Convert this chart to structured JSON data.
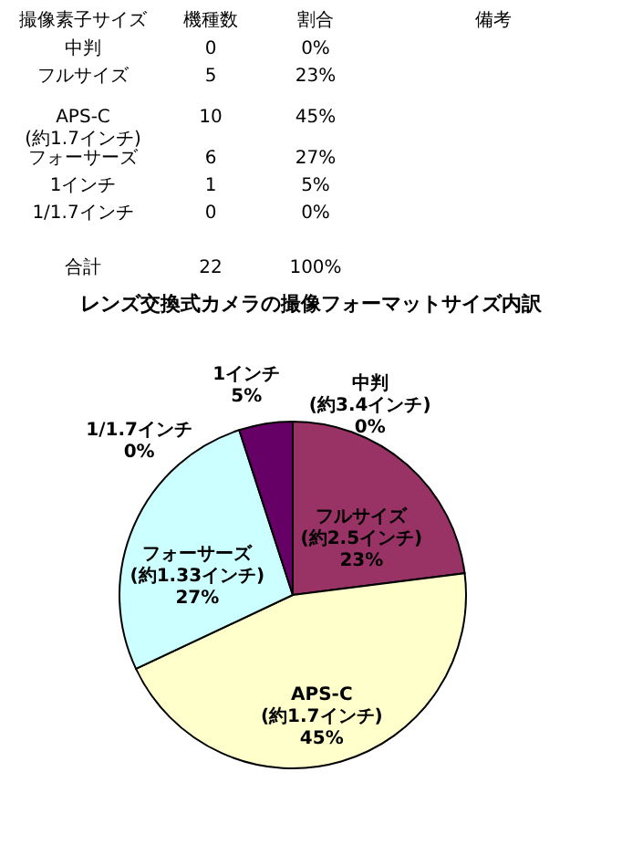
{
  "chart_data": [
    {
      "type": "other",
      "categories": [
        "撮像素子サイズ",
        "機種数",
        "割合",
        "備考"
      ],
      "annotations": [
        "中判",
        "0",
        "0%",
        null,
        "フルサイズ",
        "5",
        "23%",
        null,
        "APS-C\n(約1.7インチ)",
        "10",
        "45%",
        null,
        "フォーサーズ",
        "6",
        "27%",
        null,
        "1インチ",
        "1",
        "5%",
        null,
        "1/1.7インチ",
        "0",
        "0%",
        null,
        null,
        null,
        null,
        null,
        "合計",
        "22",
        "100%",
        null
      ]
    },
    {
      "type": "pie",
      "title": "レンズ交換式カメラの撮像フォーマットサイズ内訳",
      "categories": [
        "中判\n(約3.4インチ)",
        "フルサイズ\n(約2.5インチ)",
        "APS-C\n(約1.7インチ)",
        "フォーサーズ\n(約1.33インチ)",
        "1インチ",
        "1/1.7インチ"
      ],
      "values": [
        0,
        23,
        45,
        27,
        5,
        0
      ],
      "value_labels": [
        "0%",
        "23%",
        "45%",
        "27%",
        "5%",
        "0%"
      ],
      "colors": [
        "#9999ff",
        "#993366",
        "#ffffcc",
        "#ccffff",
        "#660066",
        "#ff8080"
      ]
    }
  ]
}
